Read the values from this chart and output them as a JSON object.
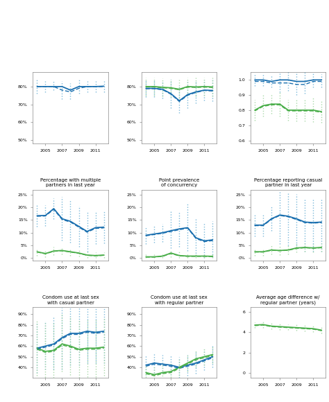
{
  "years": [
    2004,
    2005,
    2006,
    2007,
    2008,
    2009,
    2010,
    2011,
    2012
  ],
  "subplots": [
    {
      "title_above": "",
      "title_below": "Percentage with multiple\npartners in last year",
      "ylim": [
        0.48,
        0.88
      ],
      "yticks": [
        0.5,
        0.6,
        0.7,
        0.8
      ],
      "ytick_labels": [
        "50%",
        "60%",
        "70%",
        "80%"
      ],
      "blue_solid": [
        0.8,
        0.8,
        0.8,
        0.8,
        0.78,
        0.8,
        0.8,
        0.8,
        0.802
      ],
      "blue_dash": [
        0.8,
        0.8,
        0.8,
        0.78,
        0.77,
        0.79,
        0.8,
        0.8,
        0.8
      ],
      "blue_ci_low": [
        0.76,
        0.77,
        0.78,
        0.73,
        0.73,
        0.76,
        0.77,
        0.77,
        0.77
      ],
      "blue_ci_hi": [
        0.84,
        0.83,
        0.83,
        0.83,
        0.82,
        0.84,
        0.83,
        0.83,
        0.83
      ],
      "green_solid": [
        null,
        null,
        null,
        null,
        null,
        null,
        null,
        null,
        null
      ],
      "green_dash": [
        null,
        null,
        null,
        null,
        null,
        null,
        null,
        null,
        null
      ],
      "green_ci_low": [
        null,
        null,
        null,
        null,
        null,
        null,
        null,
        null,
        null
      ],
      "green_ci_hi": [
        null,
        null,
        null,
        null,
        null,
        null,
        null,
        null,
        null
      ]
    },
    {
      "title_above": "",
      "title_below": "Point prevalence\nof concurrency",
      "ylim": [
        0.48,
        0.88
      ],
      "yticks": [
        0.5,
        0.6,
        0.7,
        0.8
      ],
      "ytick_labels": [
        "50%",
        "60%",
        "70%",
        "80%"
      ],
      "blue_solid": [
        0.79,
        0.79,
        0.785,
        0.76,
        0.72,
        0.755,
        0.77,
        0.78,
        0.778
      ],
      "blue_dash": [
        0.788,
        0.788,
        0.782,
        0.757,
        0.716,
        0.751,
        0.767,
        0.778,
        0.775
      ],
      "blue_ci_low": [
        0.74,
        0.74,
        0.735,
        0.68,
        0.65,
        0.68,
        0.705,
        0.72,
        0.718
      ],
      "blue_ci_hi": [
        0.84,
        0.84,
        0.835,
        0.84,
        0.8,
        0.83,
        0.835,
        0.84,
        0.838
      ],
      "green_solid": [
        0.8,
        0.8,
        0.796,
        0.793,
        0.785,
        0.8,
        0.798,
        0.8,
        0.798
      ],
      "green_dash": [
        0.798,
        0.798,
        0.793,
        0.79,
        0.782,
        0.797,
        0.795,
        0.797,
        0.795
      ],
      "green_ci_low": [
        0.75,
        0.75,
        0.746,
        0.742,
        0.732,
        0.748,
        0.746,
        0.748,
        0.746
      ],
      "green_ci_hi": [
        0.85,
        0.85,
        0.846,
        0.844,
        0.838,
        0.852,
        0.85,
        0.852,
        0.85
      ]
    },
    {
      "title_above": "",
      "title_below": "Percentage reporting casual\npartner in last year",
      "ylim": [
        0.58,
        1.05
      ],
      "yticks": [
        0.6,
        0.7,
        0.8,
        0.9,
        1.0
      ],
      "ytick_labels": [
        "0.6",
        "0.7",
        "0.8",
        "0.9",
        "1.0"
      ],
      "blue_solid": [
        1.0,
        1.0,
        0.99,
        1.0,
        1.0,
        0.99,
        0.99,
        1.0,
        1.0
      ],
      "blue_dash": [
        0.99,
        0.99,
        0.98,
        0.98,
        0.98,
        0.97,
        0.97,
        0.99,
        0.99
      ],
      "blue_ci_low": [
        0.96,
        0.96,
        0.95,
        0.92,
        0.93,
        0.9,
        0.91,
        0.95,
        0.95
      ],
      "blue_ci_hi": [
        1.04,
        1.04,
        1.03,
        1.08,
        1.07,
        1.08,
        1.07,
        1.05,
        1.04
      ],
      "green_solid": [
        0.8,
        0.83,
        0.84,
        0.84,
        0.8,
        0.8,
        0.8,
        0.8,
        0.79
      ],
      "green_dash": [
        0.795,
        0.825,
        0.835,
        0.835,
        0.795,
        0.795,
        0.795,
        0.795,
        0.785
      ],
      "green_ci_low": [
        0.73,
        0.76,
        0.775,
        0.76,
        0.73,
        0.725,
        0.725,
        0.72,
        0.715
      ],
      "green_ci_hi": [
        0.87,
        0.9,
        0.905,
        0.92,
        0.87,
        0.875,
        0.875,
        0.88,
        0.865
      ]
    },
    {
      "title_above": "Percentage with multiple\npartners in last year",
      "title_below": "Condom use at last sex\nwith casual partner",
      "ylim": [
        -0.01,
        0.27
      ],
      "yticks": [
        0.0,
        0.05,
        0.1,
        0.15,
        0.2,
        0.25
      ],
      "ytick_labels": [
        "0%",
        "5%",
        "10%",
        "15%",
        "20%",
        "25%"
      ],
      "blue_solid": [
        0.167,
        0.168,
        0.195,
        0.155,
        0.145,
        0.125,
        0.105,
        0.12,
        0.122
      ],
      "blue_dash": [
        0.165,
        0.166,
        0.192,
        0.152,
        0.142,
        0.122,
        0.102,
        0.117,
        0.119
      ],
      "blue_ci_low": [
        0.125,
        0.128,
        0.155,
        0.068,
        0.06,
        0.045,
        0.025,
        0.055,
        0.058
      ],
      "blue_ci_hi": [
        0.21,
        0.208,
        0.235,
        0.242,
        0.23,
        0.205,
        0.185,
        0.185,
        0.186
      ],
      "green_solid": [
        0.025,
        0.018,
        0.028,
        0.03,
        0.025,
        0.02,
        0.012,
        0.01,
        0.012
      ],
      "green_dash": [
        0.024,
        0.017,
        0.027,
        0.029,
        0.024,
        0.019,
        0.011,
        0.009,
        0.011
      ],
      "green_ci_low": [
        0.01,
        0.005,
        0.012,
        0.015,
        0.01,
        0.006,
        0.0,
        0.0,
        0.0
      ],
      "green_ci_hi": [
        0.04,
        0.031,
        0.044,
        0.045,
        0.04,
        0.034,
        0.025,
        0.022,
        0.024
      ]
    },
    {
      "title_above": "Point prevalence\nof concurrency",
      "title_below": "Condom use at last sex\nwith regular partner",
      "ylim": [
        -0.01,
        0.27
      ],
      "yticks": [
        0.0,
        0.05,
        0.1,
        0.15,
        0.2,
        0.25
      ],
      "ytick_labels": [
        "0%",
        "5%",
        "10%",
        "15%",
        "20%",
        "25%"
      ],
      "blue_solid": [
        0.09,
        0.095,
        0.1,
        0.108,
        0.115,
        0.12,
        0.08,
        0.068,
        0.072
      ],
      "blue_dash": [
        0.088,
        0.093,
        0.098,
        0.105,
        0.112,
        0.118,
        0.077,
        0.065,
        0.069
      ],
      "blue_ci_low": [
        0.055,
        0.06,
        0.065,
        0.04,
        0.045,
        0.028,
        0.008,
        0.0,
        0.005
      ],
      "blue_ci_hi": [
        0.125,
        0.13,
        0.135,
        0.19,
        0.185,
        0.215,
        0.16,
        0.14,
        0.145
      ],
      "green_solid": [
        0.005,
        0.005,
        0.008,
        0.02,
        0.01,
        0.008,
        0.008,
        0.008,
        0.007
      ],
      "green_dash": [
        0.004,
        0.004,
        0.007,
        0.018,
        0.009,
        0.007,
        0.007,
        0.007,
        0.006
      ],
      "green_ci_low": [
        0.0,
        0.0,
        0.0,
        0.005,
        0.0,
        0.0,
        0.0,
        0.0,
        0.0
      ],
      "green_ci_hi": [
        0.015,
        0.015,
        0.02,
        0.035,
        0.025,
        0.02,
        0.02,
        0.018,
        0.018
      ]
    },
    {
      "title_above": "Percentage reporting casual\npartner in last year",
      "title_below": "Average age difference w/\nregular partner (years)",
      "ylim": [
        -0.01,
        0.27
      ],
      "yticks": [
        0.0,
        0.05,
        0.1,
        0.15,
        0.2,
        0.25
      ],
      "ytick_labels": [
        "0%",
        "5%",
        "10%",
        "15%",
        "20%",
        "25%"
      ],
      "blue_solid": [
        0.13,
        0.13,
        0.155,
        0.17,
        0.165,
        0.155,
        0.142,
        0.14,
        0.142
      ],
      "blue_dash": [
        0.128,
        0.128,
        0.153,
        0.168,
        0.163,
        0.152,
        0.14,
        0.138,
        0.14
      ],
      "blue_ci_low": [
        0.085,
        0.085,
        0.108,
        0.055,
        0.05,
        0.038,
        0.025,
        0.025,
        0.027
      ],
      "blue_ci_hi": [
        0.175,
        0.175,
        0.202,
        0.265,
        0.258,
        0.252,
        0.235,
        0.23,
        0.232
      ],
      "green_solid": [
        0.025,
        0.025,
        0.032,
        0.03,
        0.032,
        0.04,
        0.042,
        0.04,
        0.042
      ],
      "green_dash": [
        0.024,
        0.024,
        0.031,
        0.029,
        0.031,
        0.038,
        0.041,
        0.039,
        0.041
      ],
      "green_ci_low": [
        0.01,
        0.01,
        0.015,
        0.012,
        0.015,
        0.022,
        0.025,
        0.024,
        0.025
      ],
      "green_ci_hi": [
        0.04,
        0.04,
        0.049,
        0.048,
        0.049,
        0.058,
        0.059,
        0.056,
        0.059
      ]
    },
    {
      "title_above": "Condom use at last sex\nwith casual partner",
      "title_below": null,
      "ylim": [
        0.3,
        0.97
      ],
      "yticks": [
        0.4,
        0.5,
        0.6,
        0.7,
        0.8,
        0.9
      ],
      "ytick_labels": [
        "40%",
        "50%",
        "60%",
        "70%",
        "80%",
        "90%"
      ],
      "blue_solid": [
        0.58,
        0.6,
        0.62,
        0.68,
        0.72,
        0.72,
        0.74,
        0.73,
        0.74
      ],
      "blue_dash": [
        0.57,
        0.59,
        0.61,
        0.67,
        0.71,
        0.71,
        0.73,
        0.72,
        0.73
      ],
      "blue_ci_low": [
        0.35,
        0.38,
        0.38,
        0.38,
        0.42,
        0.42,
        0.44,
        0.44,
        0.44
      ],
      "blue_ci_hi": [
        0.82,
        0.84,
        0.87,
        0.96,
        0.97,
        0.97,
        0.97,
        0.96,
        0.97
      ],
      "green_solid": [
        0.58,
        0.55,
        0.56,
        0.62,
        0.6,
        0.57,
        0.58,
        0.58,
        0.59
      ],
      "green_dash": [
        0.57,
        0.54,
        0.55,
        0.61,
        0.59,
        0.56,
        0.57,
        0.57,
        0.58
      ],
      "green_ci_low": [
        0.32,
        0.28,
        0.3,
        0.36,
        0.33,
        0.3,
        0.31,
        0.31,
        0.32
      ],
      "green_ci_hi": [
        0.85,
        0.82,
        0.82,
        0.9,
        0.88,
        0.85,
        0.86,
        0.86,
        0.87
      ]
    },
    {
      "title_above": "Condom use at last sex\nwith regular partner",
      "title_below": null,
      "ylim": [
        0.3,
        0.97
      ],
      "yticks": [
        0.4,
        0.5,
        0.6,
        0.7,
        0.8,
        0.9
      ],
      "ytick_labels": [
        "40%",
        "50%",
        "60%",
        "70%",
        "80%",
        "90%"
      ],
      "blue_solid": [
        0.42,
        0.44,
        0.43,
        0.42,
        0.4,
        0.42,
        0.44,
        0.47,
        0.5
      ],
      "blue_dash": [
        0.41,
        0.43,
        0.42,
        0.41,
        0.39,
        0.41,
        0.43,
        0.46,
        0.49
      ],
      "blue_ci_low": [
        0.33,
        0.35,
        0.34,
        0.33,
        0.3,
        0.32,
        0.34,
        0.37,
        0.4
      ],
      "blue_ci_hi": [
        0.51,
        0.53,
        0.52,
        0.51,
        0.5,
        0.52,
        0.54,
        0.57,
        0.6
      ],
      "green_solid": [
        0.35,
        0.33,
        0.35,
        0.36,
        0.4,
        0.44,
        0.48,
        0.5,
        0.52
      ],
      "green_dash": [
        0.34,
        0.32,
        0.34,
        0.35,
        0.39,
        0.43,
        0.47,
        0.49,
        0.51
      ],
      "green_ci_low": [
        0.28,
        0.25,
        0.27,
        0.28,
        0.32,
        0.36,
        0.4,
        0.42,
        0.44
      ],
      "green_ci_hi": [
        0.42,
        0.41,
        0.43,
        0.44,
        0.48,
        0.52,
        0.56,
        0.58,
        0.6
      ]
    },
    {
      "title_above": "Average age difference w/\nregular partner (years)",
      "title_below": null,
      "ylim": [
        -0.5,
        6.5
      ],
      "yticks": [
        0,
        2,
        4,
        6
      ],
      "ytick_labels": [
        "0",
        "2",
        "4",
        "6"
      ],
      "blue_solid": [
        null,
        null,
        null,
        null,
        null,
        null,
        null,
        null,
        null
      ],
      "blue_dash": [
        null,
        null,
        null,
        null,
        null,
        null,
        null,
        null,
        null
      ],
      "blue_ci_low": [
        null,
        null,
        null,
        null,
        null,
        null,
        null,
        null,
        null
      ],
      "blue_ci_hi": [
        null,
        null,
        null,
        null,
        null,
        null,
        null,
        null,
        null
      ],
      "green_solid": [
        4.7,
        4.75,
        4.6,
        4.55,
        4.5,
        4.45,
        4.4,
        4.35,
        4.2
      ],
      "green_dash": [
        4.65,
        4.7,
        4.55,
        4.5,
        4.45,
        4.4,
        4.35,
        4.3,
        4.15
      ],
      "green_ci_low": [
        4.4,
        4.45,
        4.3,
        4.25,
        4.2,
        4.15,
        4.1,
        4.05,
        3.9
      ],
      "green_ci_hi": [
        5.0,
        5.05,
        4.9,
        4.85,
        4.8,
        4.75,
        4.7,
        4.65,
        4.5
      ]
    }
  ],
  "blue_color": "#1a6faf",
  "blue_light": "#7ab8d9",
  "green_color": "#4aae4a",
  "green_light": "#a8d8a8",
  "xticks": [
    2005,
    2007,
    2009,
    2011
  ],
  "xlim": [
    2003.5,
    2012.5
  ]
}
